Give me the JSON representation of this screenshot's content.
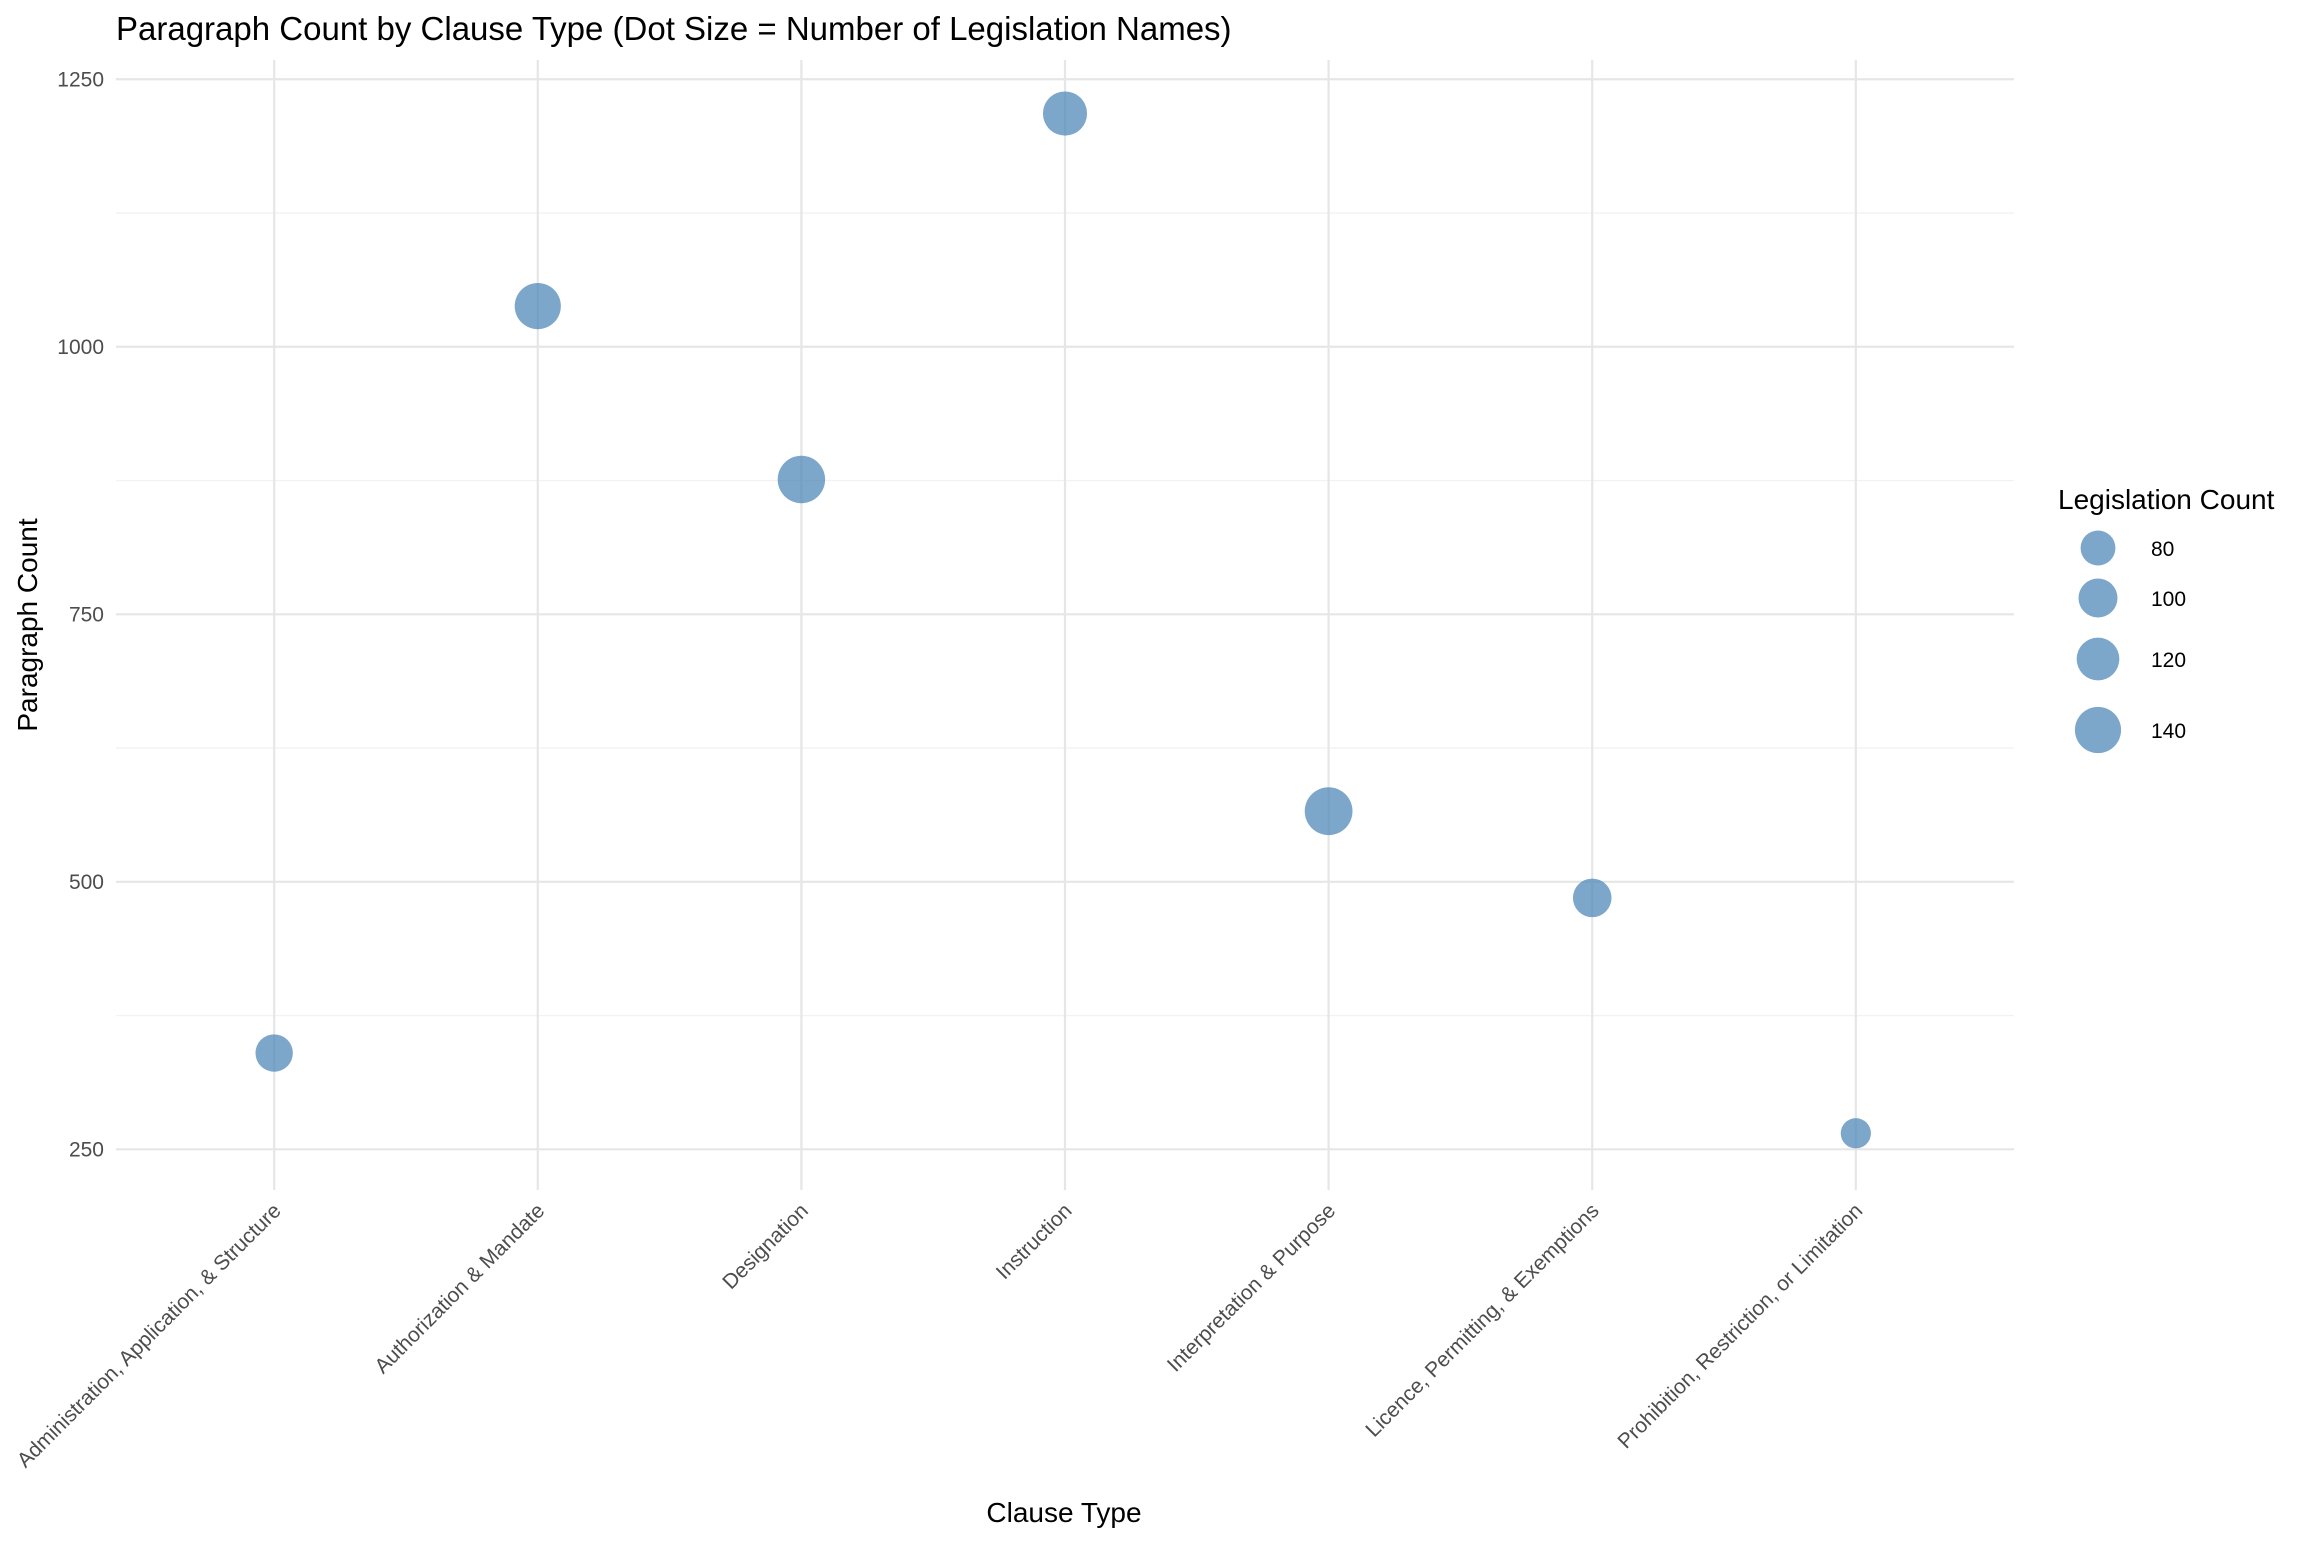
{
  "colors": {
    "point": "#4682B4",
    "grid_major": "#e6e6e6",
    "grid_minor": "#f2f2f2",
    "tick_text": "#4d4d4d"
  },
  "chart_data": {
    "type": "scatter",
    "title": "Paragraph Count by Clause Type (Dot Size = Number of Legislation Names)",
    "xlabel": "Clause Type",
    "ylabel": "Paragraph Count",
    "categories": [
      "Administration, Application, & Structure",
      "Authorization & Mandate",
      "Designation",
      "Instruction",
      "Interpretation & Purpose",
      "Licence, Permitting, & Exemptions",
      "Prohibition, Restriction, or Limitation"
    ],
    "values": [
      340,
      1038,
      876,
      1218,
      566,
      485,
      265
    ],
    "sizes": [
      92,
      140,
      148,
      128,
      150,
      98,
      60
    ],
    "yticks": [
      250,
      500,
      750,
      1000,
      1250
    ],
    "ylim": [
      212,
      1268
    ],
    "grid": true,
    "point_alpha": 0.7,
    "legend": {
      "title": "Legislation Count",
      "position": "right",
      "items": [
        {
          "label": "80",
          "value": 80
        },
        {
          "label": "100",
          "value": 100
        },
        {
          "label": "120",
          "value": 120
        },
        {
          "label": "140",
          "value": 140
        }
      ]
    }
  }
}
